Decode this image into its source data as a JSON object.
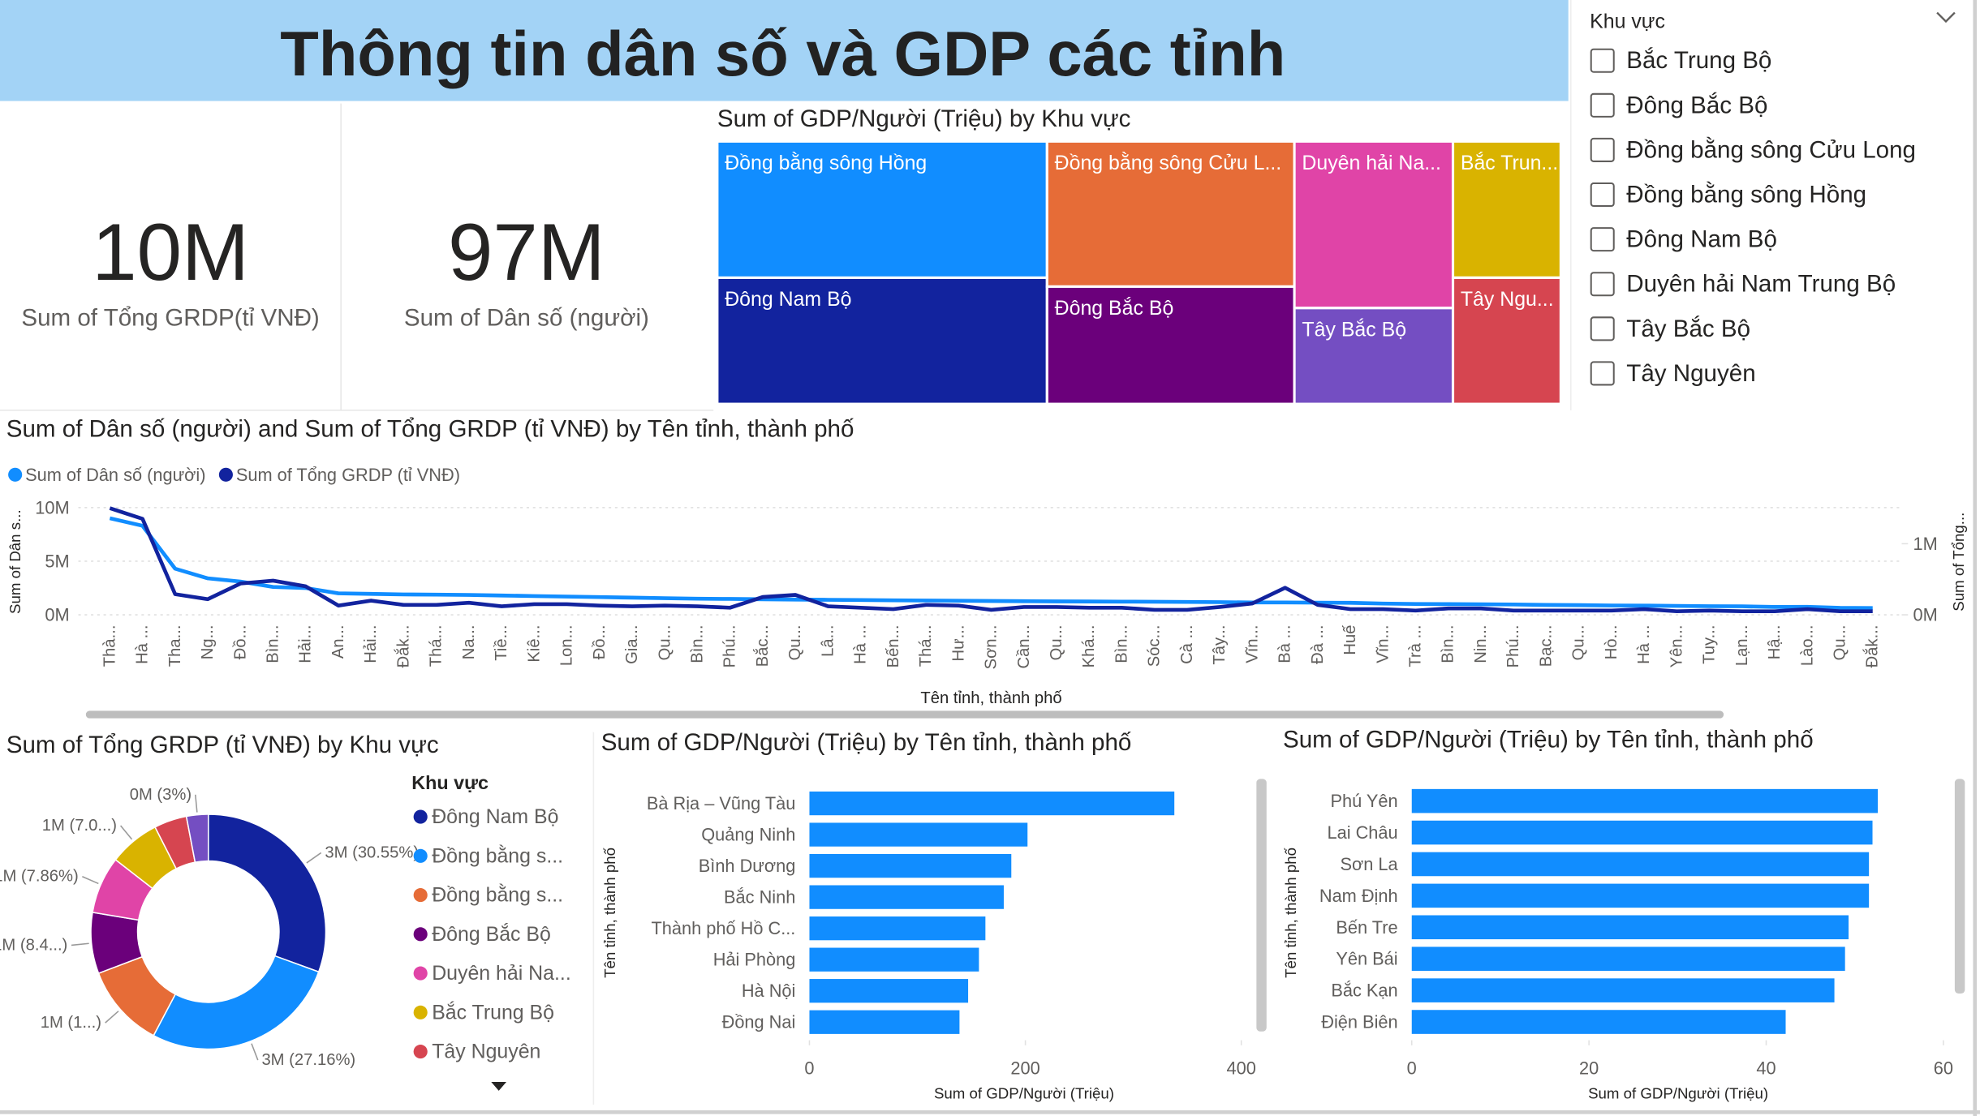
{
  "title": "Thông tin dân số và GDP các tỉnh",
  "kpis": [
    {
      "value": "10M",
      "label": "Sum of Tổng GRDP(tỉ VNĐ)"
    },
    {
      "value": "97M",
      "label": "Sum of Dân số (người)"
    }
  ],
  "slicer": {
    "title": "Khu vực",
    "items": [
      "Bắc Trung Bộ",
      "Đông Bắc Bộ",
      "Đồng bằng sông Cửu Long",
      "Đồng bằng sông Hồng",
      "Đông Nam Bộ",
      "Duyên hải Nam Trung Bộ",
      "Tây Bắc Bộ",
      "Tây Nguyên"
    ]
  },
  "chart_data": [
    {
      "type": "treemap",
      "title": "Sum of GDP/Người (Triệu) by Khu vực",
      "categories": [
        "Đồng bằng sông Hồng",
        "Đông Nam Bộ",
        "Đồng bằng sông Cửu L...",
        "Đông Bắc Bộ",
        "Duyên hải Na...",
        "Tây Bắc Bộ",
        "Bắc Trun...",
        "Tây Ngu..."
      ],
      "values": [
        1123,
        1040,
        897,
        725,
        660,
        380,
        367,
        340
      ],
      "colors": [
        "#118dff",
        "#12239e",
        "#e66c37",
        "#6b007b",
        "#e044a7",
        "#744ec2",
        "#d9b300",
        "#d64550"
      ]
    },
    {
      "type": "line",
      "title": "Sum of Dân số (người) and Sum of Tổng GRDP (tỉ VNĐ) by Tên tỉnh, thành phố",
      "x_label": "Tên tỉnh, thành phố",
      "y_label": "Sum of Dân s...",
      "y2_label": "Sum of Tổng...",
      "legend": "top-left",
      "grid": true,
      "categories": [
        "Thà...",
        "Hà ...",
        "Tha...",
        "Ng...",
        "Đồ...",
        "Bìn...",
        "Hải...",
        "An...",
        "Hải...",
        "Đắk...",
        "Thá...",
        "Na...",
        "Tiề...",
        "Kiê...",
        "Lon...",
        "Đồ...",
        "Gia...",
        "Qu...",
        "Bìn...",
        "Phú...",
        "Bắc...",
        "Qu...",
        "Lâ...",
        "Hà ...",
        "Bến...",
        "Thá...",
        "Hư...",
        "Sơn...",
        "Cần...",
        "Qu...",
        "Khá...",
        "Bìn...",
        "Sóc...",
        "Cà ...",
        "Tây...",
        "Vĩn...",
        "Bà ...",
        "Đà ...",
        "Huế",
        "Vĩn...",
        "Trà ...",
        "Bìn...",
        "Nin...",
        "Phú...",
        "Bạc...",
        "Qu...",
        "Hò...",
        "Hà ...",
        "Yên...",
        "Tuy...",
        "Lạn...",
        "Hậ...",
        "Lào...",
        "Qu...",
        "Đắk..."
      ],
      "series": [
        {
          "name": "Sum of Dân số (người)",
          "color": "#118dff",
          "values": [
            9000000,
            8300000,
            4300000,
            3400000,
            3100000,
            2600000,
            2500000,
            2000000,
            1950000,
            1900000,
            1880000,
            1850000,
            1800000,
            1750000,
            1700000,
            1650000,
            1600000,
            1550000,
            1500000,
            1480000,
            1450000,
            1420000,
            1400000,
            1380000,
            1350000,
            1330000,
            1310000,
            1290000,
            1270000,
            1250000,
            1240000,
            1230000,
            1220000,
            1200000,
            1180000,
            1150000,
            1150000,
            1130000,
            1120000,
            1050000,
            1010000,
            1000000,
            980000,
            960000,
            920000,
            900000,
            870000,
            860000,
            830000,
            800000,
            790000,
            730000,
            740000,
            650000,
            630000
          ]
        },
        {
          "name": "Sum of Tổng GRDP (tỉ VNĐ)",
          "color": "#12239e",
          "axis": "y2",
          "values": [
            1500000,
            1350000,
            290000,
            220000,
            440000,
            480000,
            400000,
            130000,
            200000,
            140000,
            140000,
            170000,
            120000,
            150000,
            150000,
            130000,
            120000,
            130000,
            120000,
            100000,
            250000,
            280000,
            120000,
            100000,
            80000,
            140000,
            130000,
            70000,
            110000,
            110000,
            100000,
            100000,
            70000,
            70000,
            110000,
            160000,
            380000,
            140000,
            80000,
            80000,
            60000,
            90000,
            90000,
            60000,
            60000,
            60000,
            60000,
            80000,
            50000,
            60000,
            50000,
            50000,
            80000,
            50000,
            50000
          ]
        }
      ],
      "ylim": [
        0,
        10240000
      ],
      "yticks": [
        {
          "value": 0,
          "label": "0M"
        },
        {
          "value": 5000000,
          "label": "5M"
        },
        {
          "value": 10000000,
          "label": "10M"
        }
      ],
      "y2lim": [
        0,
        1545000
      ],
      "y2ticks": [
        {
          "value": 0,
          "label": "0M"
        },
        {
          "value": 1000000,
          "label": "1M"
        }
      ]
    },
    {
      "type": "donut",
      "title": "Sum of Tổng GRDP (tỉ VNĐ) by Khu vực",
      "legend_title": "Khu vực",
      "categories": [
        "Đông Nam Bộ",
        "Đồng bằng s...",
        "Đồng bằng s...",
        "Đông Bắc Bộ",
        "Duyên hải Na...",
        "Bắc Trung Bộ",
        "Tây Nguyên",
        null
      ],
      "values": [
        3055000,
        2716000,
        1150000,
        840000,
        786000,
        700000,
        450000,
        300000
      ],
      "value_labels": [
        "3M (30.55%)",
        "3M (27.16%)",
        "1M (1...)",
        "1M (8.4...)",
        "1M (7.86%)",
        "1M (7.0...)",
        null,
        "0M (3%)"
      ],
      "colors": [
        "#12239e",
        "#118dff",
        "#e66c37",
        "#6b007b",
        "#e044a7",
        "#d9b300",
        "#d64550",
        "#744ec2"
      ]
    },
    {
      "type": "bar",
      "orientation": "horizontal",
      "title": "Sum of GDP/Người (Triệu) by Tên tỉnh, thành phố",
      "x_label": "Sum of GDP/Người (Triệu)",
      "y_label": "Tên tỉnh, thành phố",
      "categories": [
        "Bà Rịa – Vũng Tàu",
        "Quảng Ninh",
        "Bình Dương",
        "Bắc Ninh",
        "Thành phố Hồ C...",
        "Hải Phòng",
        "Hà Nội",
        "Đồng Nai"
      ],
      "values": [
        338,
        202,
        187,
        180,
        163,
        157,
        147,
        139
      ],
      "color": "#118dff",
      "xlim": [
        0,
        400
      ],
      "xticks": [
        0,
        200,
        400
      ]
    },
    {
      "type": "bar",
      "orientation": "horizontal",
      "title": "Sum of GDP/Người (Triệu) by Tên tỉnh, thành phố",
      "x_label": "Sum of GDP/Người (Triệu)",
      "y_label": "Tên tỉnh, thành phố",
      "categories": [
        "Phú Yên",
        "Lai Châu",
        "Sơn La",
        "Nam Định",
        "Bến Tre",
        "Yên Bái",
        "Bắc Kạn",
        "Điện Biên"
      ],
      "values": [
        52.6,
        52.0,
        51.6,
        51.6,
        49.3,
        48.9,
        47.7,
        42.2
      ],
      "color": "#118dff",
      "xlim": [
        0,
        60
      ],
      "xticks": [
        0,
        20,
        40,
        60
      ]
    }
  ]
}
